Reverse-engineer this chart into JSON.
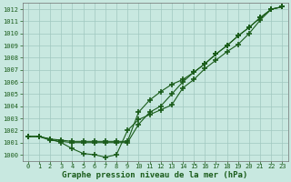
{
  "title": "Graphe pression niveau de la mer (hPa)",
  "xlim": [
    -0.5,
    23.5
  ],
  "ylim": [
    999.5,
    1012.5
  ],
  "xticks": [
    0,
    1,
    2,
    3,
    4,
    5,
    6,
    7,
    8,
    9,
    10,
    11,
    12,
    13,
    14,
    15,
    16,
    17,
    18,
    19,
    20,
    21,
    22,
    23
  ],
  "yticks": [
    1000,
    1001,
    1002,
    1003,
    1004,
    1005,
    1006,
    1007,
    1008,
    1009,
    1010,
    1011,
    1012
  ],
  "bg_color": "#c8e8e0",
  "grid_color": "#a0c8c0",
  "line_color": "#1a5c1a",
  "line1": [
    1001.5,
    1001.5,
    1001.3,
    1001.0,
    1000.5,
    1000.1,
    1000.0,
    999.8,
    1000.0,
    1002.0,
    1002.9,
    1003.3,
    1003.7,
    1004.1,
    1005.5,
    1006.2,
    1007.1,
    1007.8,
    1008.5,
    1009.1,
    1010.0,
    1011.1,
    1012.0,
    1012.2
  ],
  "line2": [
    1001.5,
    1001.5,
    1001.2,
    1001.1,
    1001.0,
    1001.0,
    1001.0,
    1001.0,
    1001.0,
    1001.0,
    1002.5,
    1003.5,
    1004.0,
    1005.0,
    1006.0,
    1006.8,
    1007.5,
    1008.3,
    1009.0,
    1009.8,
    1010.5,
    1011.3,
    1012.0,
    1012.2
  ],
  "line3": [
    1001.5,
    1001.5,
    1001.3,
    1001.2,
    1001.1,
    1001.1,
    1001.1,
    1001.1,
    1001.1,
    1001.1,
    1003.5,
    1004.5,
    1005.2,
    1005.8,
    1006.2,
    1006.8,
    1007.5,
    1008.3,
    1009.0,
    1009.8,
    1010.5,
    1011.3,
    1012.0,
    1012.2
  ],
  "title_fontsize": 6.5,
  "tick_fontsize": 5
}
